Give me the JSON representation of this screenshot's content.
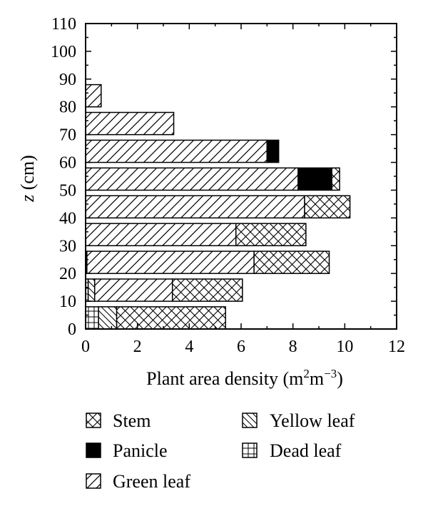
{
  "chart_data": {
    "type": "bar",
    "orientation": "horizontal",
    "stacked": true,
    "xlabel_prefix": "Plant area density (m",
    "xlabel_sup1": "2",
    "xlabel_mid": "m",
    "xlabel_sup2": "−3",
    "xlabel_suffix": ")",
    "ylabel_var": "z",
    "ylabel_unit": " (cm)",
    "xlim": [
      0,
      12
    ],
    "ylim": [
      0,
      110
    ],
    "xticks": [
      0,
      2,
      4,
      6,
      8,
      10,
      12
    ],
    "yticks": [
      0,
      10,
      20,
      30,
      40,
      50,
      60,
      70,
      80,
      90,
      100,
      110
    ],
    "grid": false,
    "legend_position": "bottom",
    "bins": [
      {
        "z_from": 0,
        "z_to": 8
      },
      {
        "z_from": 10,
        "z_to": 18
      },
      {
        "z_from": 20,
        "z_to": 28
      },
      {
        "z_from": 30,
        "z_to": 38
      },
      {
        "z_from": 40,
        "z_to": 48
      },
      {
        "z_from": 50,
        "z_to": 58
      },
      {
        "z_from": 60,
        "z_to": 68
      },
      {
        "z_from": 70,
        "z_to": 78
      },
      {
        "z_from": 80,
        "z_to": 88
      }
    ],
    "series": [
      {
        "name": "Dead leaf",
        "pattern": "dead",
        "values": [
          0.5,
          0.1,
          0.05,
          0,
          0,
          0,
          0,
          0,
          0
        ]
      },
      {
        "name": "Yellow leaf",
        "pattern": "yellow",
        "values": [
          0.7,
          0.25,
          0,
          0,
          0,
          0,
          0,
          0,
          0
        ]
      },
      {
        "name": "Green leaf",
        "pattern": "green",
        "values": [
          0,
          3.0,
          6.45,
          5.8,
          8.45,
          8.2,
          7.0,
          3.4,
          0.6
        ]
      },
      {
        "name": "Panicle",
        "pattern": "panicle",
        "values": [
          0,
          0,
          0,
          0,
          0,
          1.3,
          0.45,
          0,
          0
        ]
      },
      {
        "name": "Stem",
        "pattern": "stem",
        "values": [
          4.2,
          2.7,
          2.9,
          2.7,
          1.75,
          0.3,
          0,
          0,
          0
        ]
      }
    ],
    "legend_order": [
      "Stem",
      "Yellow leaf",
      "Panicle",
      "Dead leaf",
      "Green leaf"
    ]
  }
}
